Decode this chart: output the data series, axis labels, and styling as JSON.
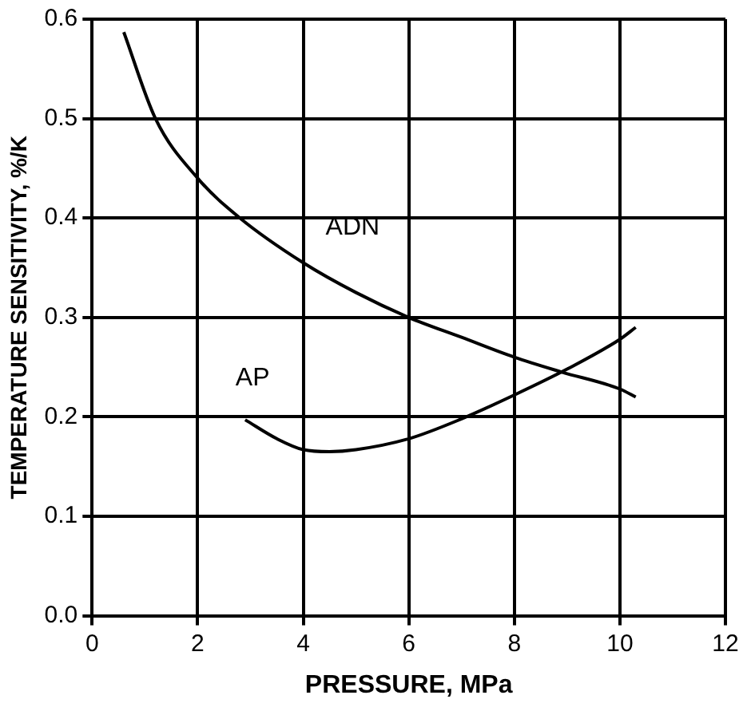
{
  "chart_data": {
    "type": "line",
    "xlabel": "PRESSURE, MPa",
    "ylabel": "TEMPERATURE SENSITIVITY, %/K",
    "xlim": [
      0,
      12
    ],
    "xticks": [
      0,
      2,
      4,
      6,
      8,
      10,
      12
    ],
    "ylim": [
      0,
      0.6
    ],
    "yticks": [
      {
        "value": 0,
        "label": "0.0"
      },
      0.1,
      0.2,
      0.3,
      0.4,
      0.5,
      0.6
    ],
    "grid": true,
    "legend": false,
    "marker": "none",
    "line_style": "solid",
    "series": [
      {
        "name": "ADN",
        "color": "#000000",
        "x": [
          0.6,
          1.2,
          2,
          2.8,
          4,
          5,
          6,
          7,
          8,
          8.9,
          10,
          10.3
        ],
        "values": [
          0.587,
          0.5,
          0.44,
          0.4,
          0.355,
          0.325,
          0.3,
          0.28,
          0.26,
          0.245,
          0.228,
          0.22
        ]
      },
      {
        "name": "AP",
        "color": "#000000",
        "x": [
          2.9,
          3.5,
          4,
          4.5,
          5,
          6,
          7,
          8,
          9,
          10,
          10.3
        ],
        "values": [
          0.197,
          0.178,
          0.167,
          0.165,
          0.167,
          0.178,
          0.198,
          0.222,
          0.248,
          0.278,
          0.29
        ]
      }
    ]
  }
}
